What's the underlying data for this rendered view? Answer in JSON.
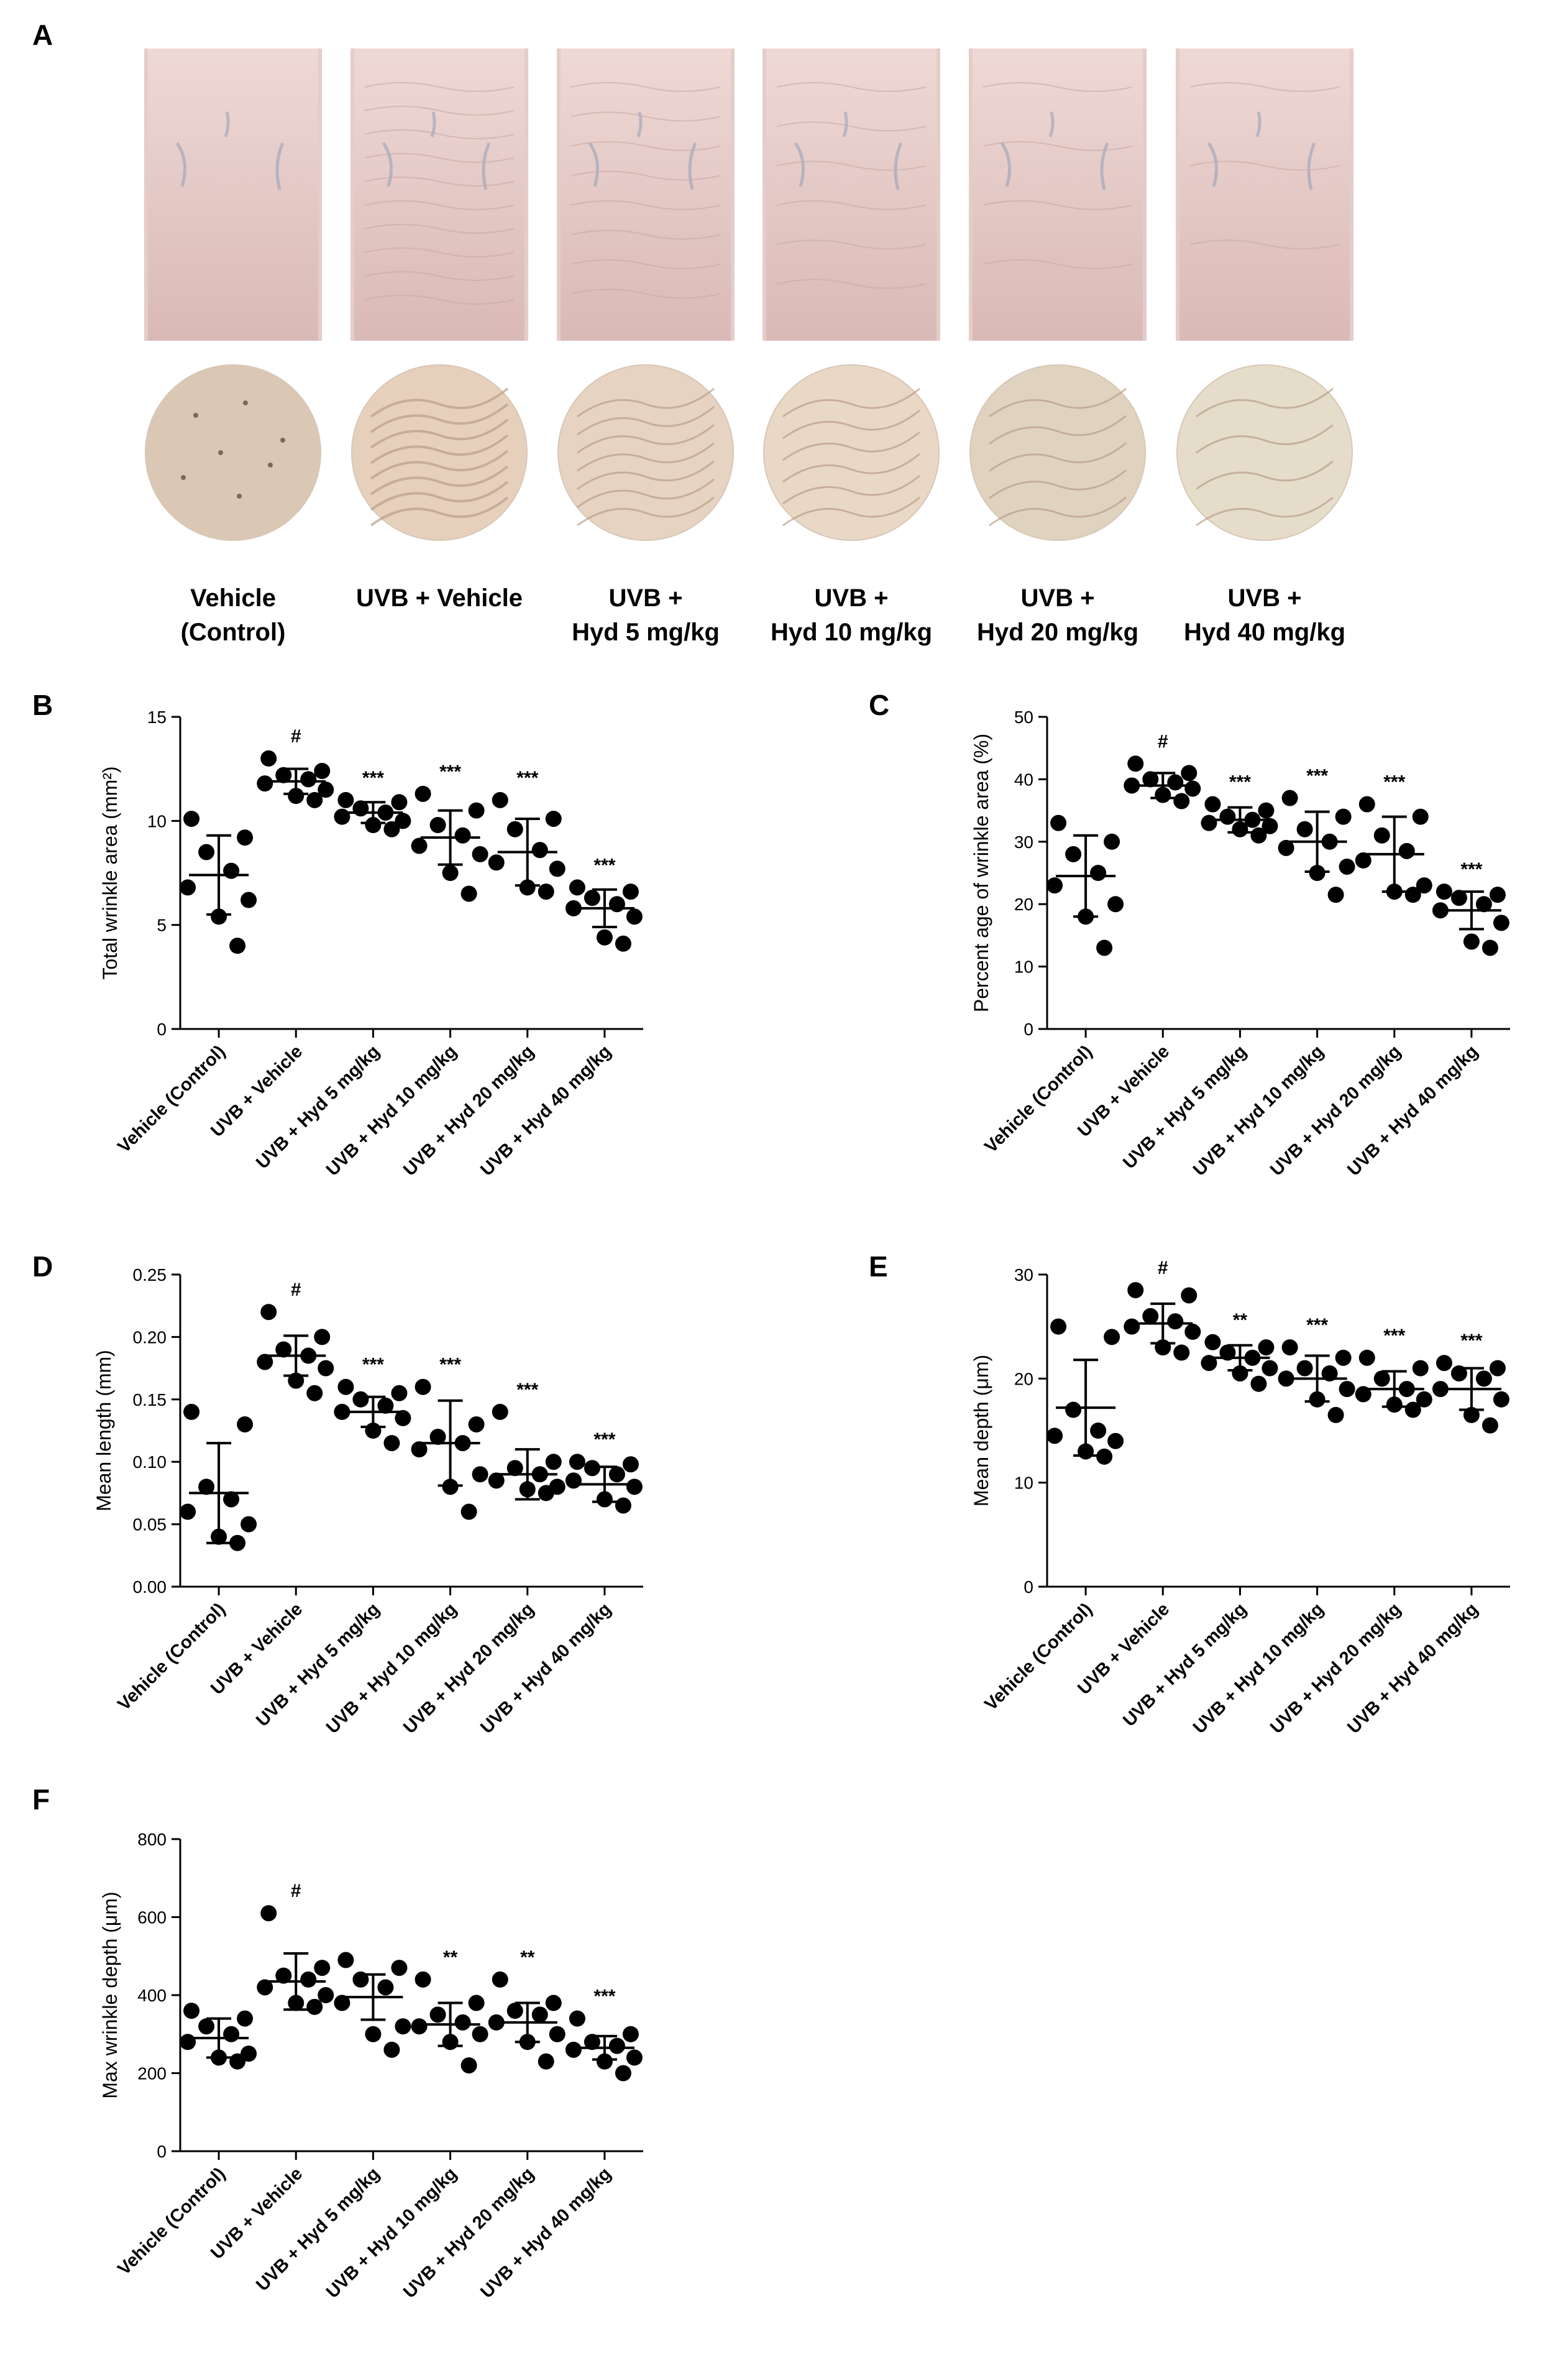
{
  "panel_a": {
    "letter": "A",
    "groups": [
      {
        "line1": "Vehicle",
        "line2": "(Control)"
      },
      {
        "line1": "UVB + Vehicle",
        "line2": ""
      },
      {
        "line1": "UVB +",
        "line2": "Hyd 5 mg/kg"
      },
      {
        "line1": "UVB +",
        "line2": "Hyd 10 mg/kg"
      },
      {
        "line1": "UVB +",
        "line2": "Hyd 20 mg/kg"
      },
      {
        "line1": "UVB +",
        "line2": "Hyd 40 mg/kg"
      }
    ],
    "colors": {
      "skin": "#efd9d5",
      "skin_dark": "#d9b9b6",
      "vein": "#8f9fb8",
      "circle": [
        "#dac7b4",
        "#e7d0bb",
        "#e6d3c1",
        "#ead8c6",
        "#dfd3bf",
        "#e6dcca"
      ],
      "wrinkle": "#b69a82"
    }
  },
  "chart_data": [
    {
      "panel": "B",
      "type": "scatter",
      "ylabel": "Total wrinkle area (mm²)",
      "ylim": [
        0,
        15
      ],
      "yticks": [
        "0",
        "5",
        "10",
        "15"
      ],
      "categories": [
        "Vehicle (Control)",
        "UVB + Vehicle",
        "UVB + Hyd 5 mg/kg",
        "UVB + Hyd 10 mg/kg",
        "UVB + Hyd 20 mg/kg",
        "UVB + Hyd 40 mg/kg"
      ],
      "points": [
        [
          10.1,
          9.2,
          8.5,
          7.6,
          6.8,
          6.2,
          5.4,
          4.0
        ],
        [
          13.0,
          12.4,
          12.2,
          12.0,
          11.8,
          11.5,
          11.2,
          11.0
        ],
        [
          11.0,
          10.9,
          10.6,
          10.4,
          10.2,
          10.0,
          9.8,
          9.6
        ],
        [
          11.3,
          10.5,
          9.8,
          9.3,
          8.8,
          8.4,
          7.5,
          6.5
        ],
        [
          11.0,
          10.1,
          9.6,
          8.6,
          8.0,
          7.7,
          6.8,
          6.6
        ],
        [
          6.8,
          6.6,
          6.3,
          6.0,
          5.8,
          5.4,
          4.4,
          4.1
        ]
      ],
      "means": [
        7.4,
        11.9,
        10.4,
        9.2,
        8.5,
        5.8
      ],
      "sd": [
        1.9,
        0.6,
        0.5,
        1.3,
        1.6,
        0.9
      ],
      "significance": [
        "",
        "#",
        "***",
        "***",
        "***",
        "***"
      ]
    },
    {
      "panel": "C",
      "type": "scatter",
      "ylabel": "Percent age of wrinkle area (%)",
      "ylim": [
        0,
        50
      ],
      "yticks": [
        "0",
        "10",
        "20",
        "30",
        "40",
        "50"
      ],
      "categories": [
        "Vehicle (Control)",
        "UVB + Vehicle",
        "UVB + Hyd 5 mg/kg",
        "UVB + Hyd 10 mg/kg",
        "UVB + Hyd 20 mg/kg",
        "UVB + Hyd 40 mg/kg"
      ],
      "points": [
        [
          33.0,
          30.0,
          28.0,
          25.0,
          23.0,
          20.0,
          18.0,
          13.0
        ],
        [
          42.5,
          41.0,
          40.0,
          39.5,
          39.0,
          38.5,
          37.5,
          36.5
        ],
        [
          36.0,
          35.0,
          34.0,
          33.5,
          33.0,
          32.5,
          32.0,
          31.0
        ],
        [
          37.0,
          34.0,
          32.0,
          30.0,
          29.0,
          26.0,
          25.0,
          21.5
        ],
        [
          36.0,
          34.0,
          31.0,
          28.5,
          27.0,
          23.0,
          22.0,
          21.5
        ],
        [
          22.0,
          21.5,
          21.0,
          20.0,
          19.0,
          17.0,
          14.0,
          13.0
        ]
      ],
      "means": [
        24.5,
        39.0,
        33.5,
        30.0,
        28.0,
        19.0
      ],
      "sd": [
        6.5,
        2.0,
        2.0,
        4.8,
        6.0,
        3.0
      ],
      "significance": [
        "",
        "#",
        "***",
        "***",
        "***",
        "***"
      ]
    },
    {
      "panel": "D",
      "type": "scatter",
      "ylabel": "Mean length (mm)",
      "ylim": [
        0,
        0.25
      ],
      "yticks": [
        "0.00",
        "0.05",
        "0.10",
        "0.15",
        "0.20",
        "0.25"
      ],
      "categories": [
        "Vehicle (Control)",
        "UVB + Vehicle",
        "UVB + Hyd 5 mg/kg",
        "UVB + Hyd 10 mg/kg",
        "UVB + Hyd 20 mg/kg",
        "UVB + Hyd 40 mg/kg"
      ],
      "points": [
        [
          0.14,
          0.13,
          0.08,
          0.07,
          0.06,
          0.05,
          0.04,
          0.035
        ],
        [
          0.22,
          0.2,
          0.19,
          0.185,
          0.18,
          0.175,
          0.165,
          0.155
        ],
        [
          0.16,
          0.155,
          0.15,
          0.145,
          0.14,
          0.135,
          0.125,
          0.115
        ],
        [
          0.16,
          0.13,
          0.12,
          0.115,
          0.11,
          0.09,
          0.08,
          0.06
        ],
        [
          0.14,
          0.1,
          0.095,
          0.09,
          0.085,
          0.08,
          0.078,
          0.075
        ],
        [
          0.1,
          0.098,
          0.095,
          0.09,
          0.085,
          0.08,
          0.07,
          0.065
        ]
      ],
      "means": [
        0.075,
        0.185,
        0.14,
        0.115,
        0.09,
        0.082
      ],
      "sd": [
        0.04,
        0.016,
        0.012,
        0.034,
        0.02,
        0.014
      ],
      "significance": [
        "",
        "#",
        "***",
        "***",
        "***",
        "***"
      ]
    },
    {
      "panel": "E",
      "type": "scatter",
      "ylabel": "Mean depth (μm)",
      "ylim": [
        0,
        30
      ],
      "yticks": [
        "0",
        "10",
        "20",
        "30"
      ],
      "categories": [
        "Vehicle (Control)",
        "UVB + Vehicle",
        "UVB + Hyd 5 mg/kg",
        "UVB + Hyd 10 mg/kg",
        "UVB + Hyd 20 mg/kg",
        "UVB + Hyd 40 mg/kg"
      ],
      "points": [
        [
          25.0,
          24.0,
          17.0,
          15.0,
          14.5,
          14.0,
          13.0,
          12.5
        ],
        [
          28.5,
          28.0,
          26.0,
          25.5,
          25.0,
          24.5,
          23.0,
          22.5
        ],
        [
          23.5,
          23.0,
          22.5,
          22.0,
          21.5,
          21.0,
          20.5,
          19.5
        ],
        [
          23.0,
          22.0,
          21.0,
          20.5,
          20.0,
          19.0,
          18.0,
          16.5
        ],
        [
          22.0,
          21.0,
          20.0,
          19.0,
          18.5,
          18.0,
          17.5,
          17.0
        ],
        [
          21.5,
          21.0,
          20.5,
          20.0,
          19.0,
          18.0,
          16.5,
          15.5
        ]
      ],
      "means": [
        17.2,
        25.3,
        22.0,
        20.0,
        19.0,
        19.0
      ],
      "sd": [
        4.6,
        1.9,
        1.2,
        2.2,
        1.7,
        2.0
      ],
      "significance": [
        "",
        "#",
        "**",
        "***",
        "***",
        "***"
      ]
    },
    {
      "panel": "F",
      "type": "scatter",
      "ylabel": "Max wrinkle depth (μm)",
      "ylim": [
        0,
        800
      ],
      "yticks": [
        "0",
        "200",
        "400",
        "600",
        "800"
      ],
      "categories": [
        "Vehicle (Control)",
        "UVB + Vehicle",
        "UVB + Hyd 5 mg/kg",
        "UVB + Hyd 10 mg/kg",
        "UVB + Hyd 20 mg/kg",
        "UVB + Hyd 40 mg/kg"
      ],
      "points": [
        [
          360,
          340,
          320,
          300,
          280,
          250,
          240,
          230
        ],
        [
          610,
          470,
          450,
          440,
          420,
          400,
          380,
          370
        ],
        [
          490,
          470,
          440,
          420,
          380,
          320,
          300,
          260
        ],
        [
          440,
          380,
          350,
          330,
          320,
          300,
          280,
          220
        ],
        [
          440,
          380,
          360,
          350,
          330,
          300,
          280,
          230
        ],
        [
          340,
          300,
          280,
          270,
          260,
          240,
          230,
          200
        ]
      ],
      "means": [
        290,
        435,
        395,
        325,
        330,
        265
      ],
      "sd": [
        50,
        72,
        58,
        55,
        50,
        30
      ],
      "significance": [
        "",
        "#",
        "",
        "**",
        "**",
        "***"
      ]
    }
  ]
}
